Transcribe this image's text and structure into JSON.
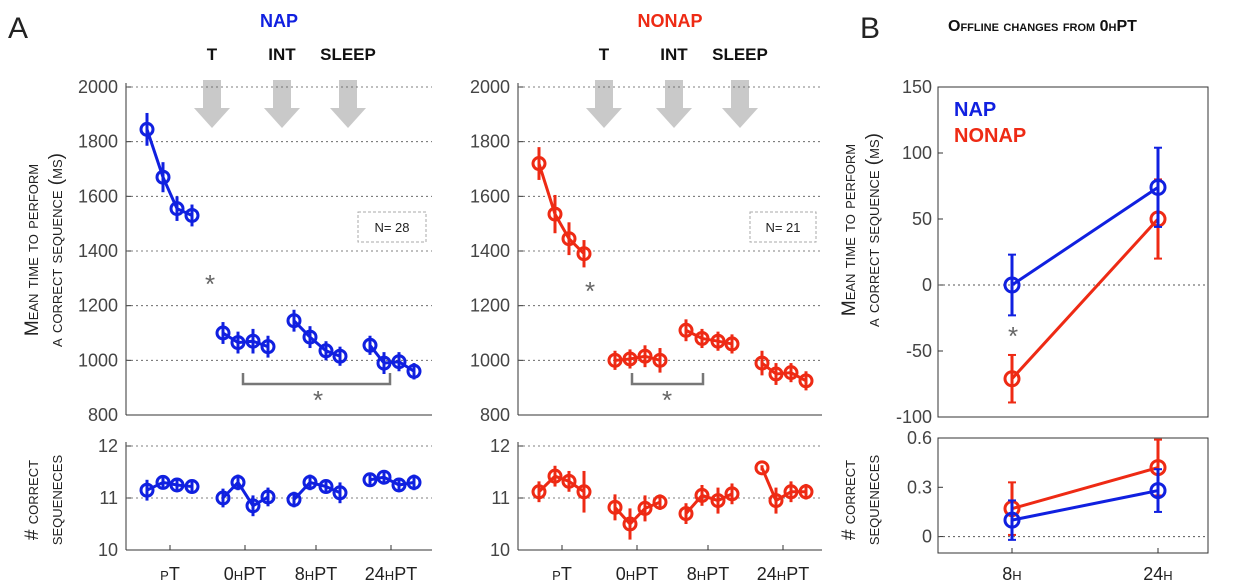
{
  "figure": {
    "panel_a": "A",
    "panel_b": "B",
    "panel_b_title": "Offline changes from 0hPT",
    "ylabel_time_1": "Mean time to perform",
    "ylabel_time_2": "a correct sequence (ms)",
    "ylabel_count_1": "# correct",
    "ylabel_count_2": "sequeneces",
    "arrow_labels": [
      "T",
      "INT",
      "SLEEP"
    ],
    "n_nap": "N= 28",
    "n_nonap": "N= 21",
    "star": "*",
    "colors": {
      "nap": "#1020e0",
      "nonap": "#ee2a14",
      "arrow": "#c9c9c9",
      "bracket": "#777777"
    }
  },
  "chart_data": [
    {
      "type": "line",
      "title": "NAP",
      "panel": "A",
      "categories": [
        "pT",
        "0hPT",
        "8hPT",
        "24hPT"
      ],
      "ylim": [
        800,
        2000
      ],
      "yticks": [
        800,
        1000,
        1200,
        1400,
        1600,
        1800,
        2000
      ],
      "grid": "horizontal dotted",
      "series": [
        {
          "color": "#1020e0",
          "groups": [
            [
              1845,
              1670,
              1555,
              1530
            ],
            [
              1100,
              1065,
              1070,
              1050
            ],
            [
              1145,
              1085,
              1035,
              1015
            ],
            [
              1055,
              990,
              995,
              960
            ]
          ],
          "errors": [
            [
              60,
              55,
              45,
              40
            ],
            [
              40,
              40,
              45,
              40
            ],
            [
              40,
              40,
              35,
              35
            ],
            [
              35,
              40,
              35,
              30
            ]
          ]
        }
      ],
      "annotations": [
        "*",
        "*"
      ]
    },
    {
      "type": "line",
      "title": "NONAP",
      "panel": "A",
      "categories": [
        "pT",
        "0hPT",
        "8hPT",
        "24hPT"
      ],
      "ylim": [
        800,
        2000
      ],
      "yticks": [
        800,
        1000,
        1200,
        1400,
        1600,
        1800,
        2000
      ],
      "grid": "horizontal dotted",
      "series": [
        {
          "color": "#ee2a14",
          "groups": [
            [
              1720,
              1535,
              1445,
              1390
            ],
            [
              1000,
              1005,
              1015,
              1000
            ],
            [
              1110,
              1080,
              1070,
              1060
            ],
            [
              990,
              950,
              955,
              925
            ]
          ],
          "errors": [
            [
              60,
              70,
              60,
              50
            ],
            [
              35,
              35,
              40,
              45
            ],
            [
              40,
              35,
              35,
              35
            ],
            [
              45,
              40,
              35,
              35
            ]
          ]
        }
      ],
      "annotations": [
        "*",
        "*"
      ]
    },
    {
      "type": "line",
      "panel": "A",
      "categories": [
        "pT",
        "0hPT",
        "8hPT",
        "24hPT"
      ],
      "ylim": [
        10,
        12
      ],
      "yticks": [
        10,
        11,
        12
      ],
      "grid": "horizontal dotted",
      "series": [
        {
          "color": "#1020e0",
          "groups": [
            [
              11.15,
              11.3,
              11.25,
              11.22
            ],
            [
              11.0,
              11.3,
              10.85,
              11.02
            ],
            [
              10.97,
              11.3,
              11.22,
              11.1
            ],
            [
              11.35,
              11.4,
              11.25,
              11.3
            ]
          ],
          "errors": [
            [
              0.2,
              0.12,
              0.12,
              0.12
            ],
            [
              0.18,
              0.15,
              0.2,
              0.18
            ],
            [
              0.15,
              0.15,
              0.12,
              0.2
            ],
            [
              0.12,
              0.12,
              0.12,
              0.15
            ]
          ]
        }
      ]
    },
    {
      "type": "line",
      "panel": "A",
      "categories": [
        "pT",
        "0hPT",
        "8hPT",
        "24hPT"
      ],
      "ylim": [
        10,
        12
      ],
      "yticks": [
        10,
        11,
        12
      ],
      "grid": "horizontal dotted",
      "series": [
        {
          "color": "#ee2a14",
          "groups": [
            [
              11.12,
              11.42,
              11.32,
              11.12
            ],
            [
              10.82,
              10.5,
              10.8,
              10.92
            ],
            [
              10.7,
              11.05,
              10.95,
              11.08
            ],
            [
              11.58,
              10.95,
              11.12,
              11.12
            ]
          ],
          "errors": [
            [
              0.2,
              0.2,
              0.2,
              0.4
            ],
            [
              0.25,
              0.3,
              0.25,
              0.15
            ],
            [
              0.2,
              0.2,
              0.25,
              0.2
            ],
            [
              0.05,
              0.25,
              0.2,
              0.15
            ]
          ]
        }
      ]
    },
    {
      "type": "line",
      "panel": "B",
      "categories": [
        "8h",
        "24h"
      ],
      "ylim": [
        -100,
        150
      ],
      "yticks": [
        -100,
        -50,
        0,
        50,
        100,
        150
      ],
      "legend": "top-left",
      "series": [
        {
          "name": "NAP",
          "color": "#1020e0",
          "values": [
            0,
            74
          ],
          "errors": [
            23,
            30
          ]
        },
        {
          "name": "NONAP",
          "color": "#ee2a14",
          "values": [
            -71,
            50
          ],
          "errors": [
            18,
            30
          ]
        }
      ],
      "annotations": [
        "*"
      ]
    },
    {
      "type": "line",
      "panel": "B",
      "categories": [
        "8h",
        "24h"
      ],
      "ylim": [
        -0.1,
        0.6
      ],
      "yticks": [
        0,
        0.3,
        0.6
      ],
      "series": [
        {
          "name": "NAP",
          "color": "#1020e0",
          "values": [
            0.1,
            0.28
          ],
          "errors": [
            0.12,
            0.13
          ]
        },
        {
          "name": "NONAP",
          "color": "#ee2a14",
          "values": [
            0.17,
            0.42
          ],
          "errors": [
            0.16,
            0.17
          ]
        }
      ]
    }
  ]
}
